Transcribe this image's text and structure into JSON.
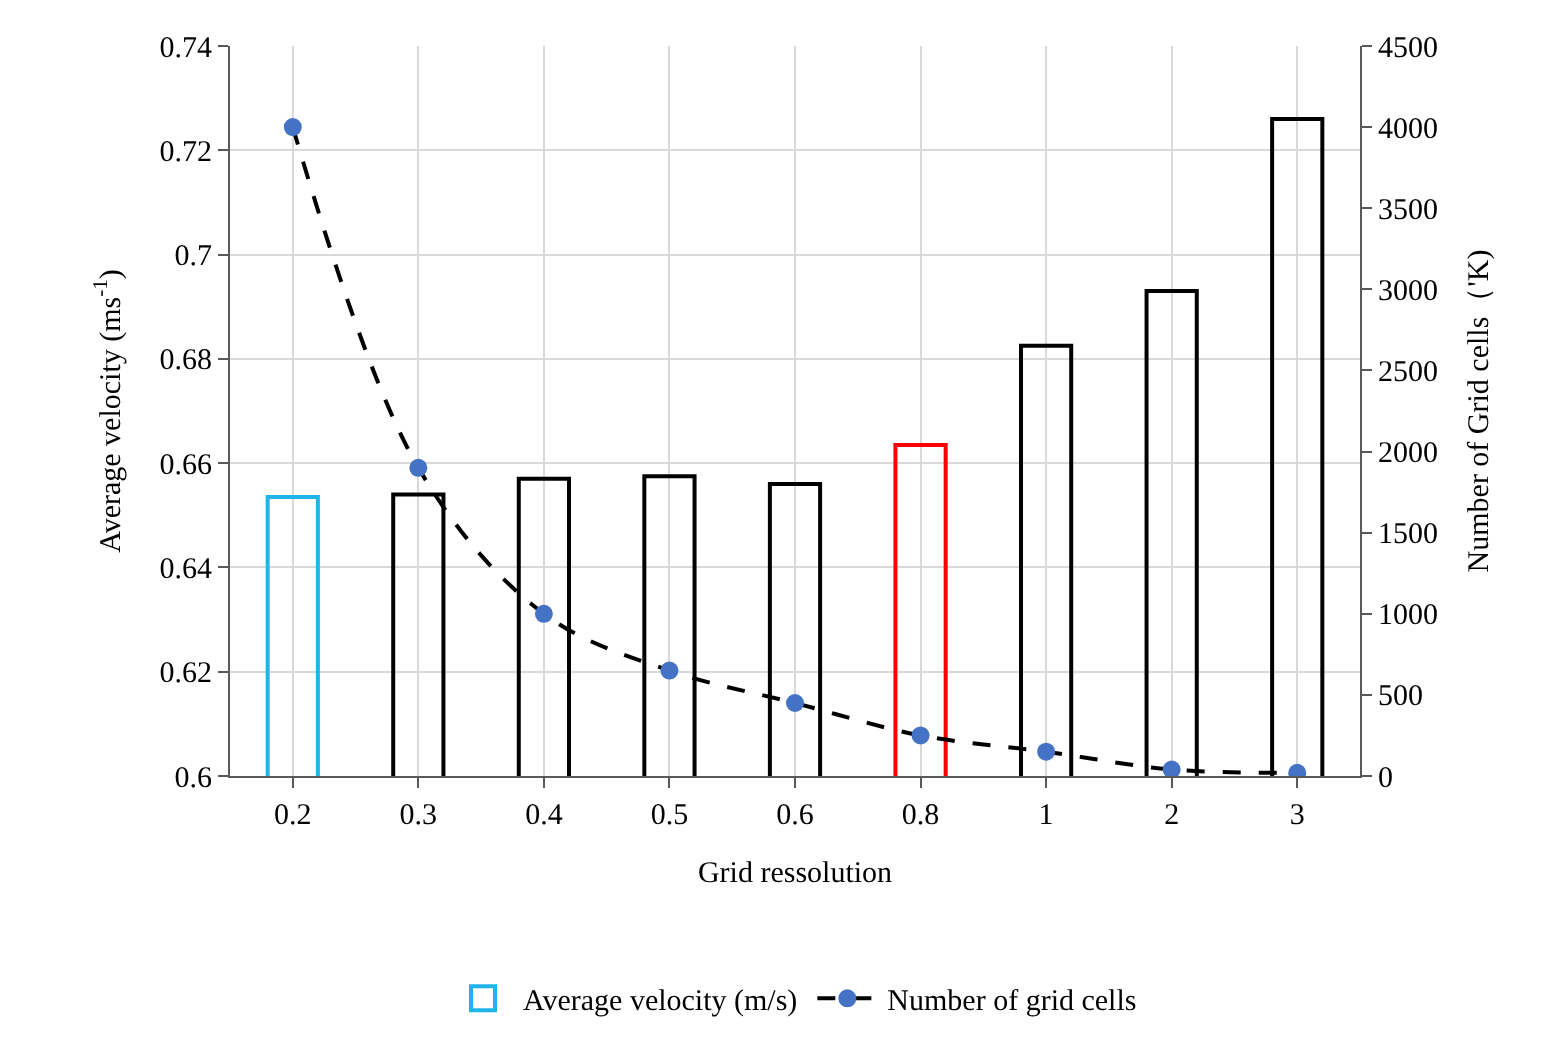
{
  "chart_data": {
    "type": "bar",
    "xlabel": "Grid ressolution",
    "ylabel": "Average velocity (ms$^{-1}$)",
    "y2label": "Number of Grid cells（'K)",
    "categories": [
      "0.2",
      "0.3",
      "0.4",
      "0.5",
      "0.6",
      "0.8",
      "1",
      "2",
      "3"
    ],
    "series": [
      {
        "name": "Average velocity (m/s)",
        "colors": [
          "#1fb5e8",
          "#000000",
          "#000000",
          "#000000",
          "#000000",
          "#ff0000",
          "#000000",
          "#000000",
          "#000000"
        ],
        "values": [
          0.6535,
          0.654,
          0.657,
          0.6575,
          0.656,
          0.6635,
          0.6825,
          0.693,
          0.726
        ]
      },
      {
        "name": "Number of grid cells",
        "type": "line",
        "axis": "y2",
        "color": "#000000",
        "colors": [
          "#4472c4",
          "#4472c4",
          "#4472c4",
          "#4472c4",
          "#4472c4",
          "#4472c4",
          "#4472c4",
          "#4472c4",
          "#4472c4"
        ],
        "marker": "circle",
        "line_style": "dashed",
        "values": [
          4000,
          1900,
          1000,
          650,
          450,
          250,
          150,
          40,
          20
        ]
      }
    ],
    "ylim": [
      0.6,
      0.74
    ],
    "yticks": [
      0.6,
      0.62,
      0.64,
      0.66,
      0.68,
      0.7,
      0.72,
      0.74
    ],
    "y2lim": [
      0,
      4500
    ],
    "y2ticks": [
      0,
      500,
      1000,
      1500,
      2000,
      2500,
      3000,
      3500,
      4000,
      4500
    ],
    "grid": true,
    "legend": "bottom"
  }
}
